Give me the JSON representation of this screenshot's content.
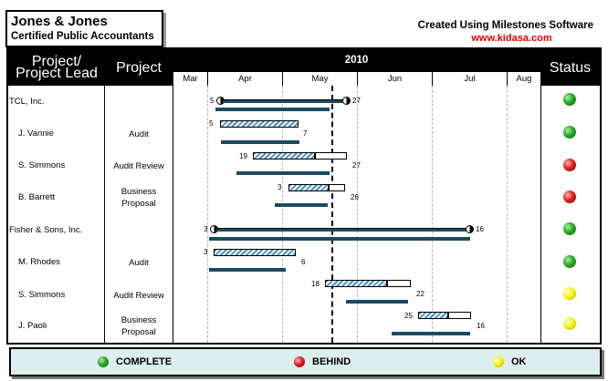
{
  "title": {
    "company": "Jones & Jones",
    "subtitle": "Certified Public Accountants"
  },
  "credit": {
    "line1": "Created Using Milestones Software",
    "url": "www.kidasa.com"
  },
  "header": {
    "col1": "Project/\nProject Lead",
    "col2": "Project",
    "year": "2010",
    "status": "Status"
  },
  "months": [
    "Mar",
    "Apr",
    "May",
    "Jun",
    "Jul",
    "Aug"
  ],
  "rows": [
    {
      "lead": "TCL,  Inc.",
      "project": "",
      "start_label": "5",
      "end_label": "27",
      "status": "green"
    },
    {
      "lead": "J. Vannie",
      "project": "Audit",
      "start_label": "5",
      "end_label": "7",
      "status": "green"
    },
    {
      "lead": "S. Simmons",
      "project": "Audit Review",
      "start_label": "19",
      "end_label": "27",
      "status": "red"
    },
    {
      "lead": "B. Barrett",
      "project": "Business\nProposal",
      "start_label": "3",
      "end_label": "26",
      "status": "red"
    },
    {
      "lead": "Fisher & Sons, Inc.",
      "project": "",
      "start_label": "3",
      "end_label": "16",
      "status": "green"
    },
    {
      "lead": "M. Rhodes",
      "project": "Audit",
      "start_label": "3",
      "end_label": "6",
      "status": "green"
    },
    {
      "lead": "S. Simmons",
      "project": "Audit Review",
      "start_label": "18",
      "end_label": "22",
      "status": "yellow"
    },
    {
      "lead": "J. Paoli",
      "project": "Business\nProposal",
      "start_label": "25",
      "end_label": "16",
      "status": "yellow"
    }
  ],
  "legend": {
    "complete": "COMPLETE",
    "behind": "BEHIND",
    "ok": "OK"
  },
  "colors": {
    "complete": "#28a828",
    "behind": "#e02020",
    "ok": "#f2f200",
    "baseline": "#1c4a5e",
    "bar_hatch": "#4a90c8",
    "legend_bg": "#ddeeee"
  }
}
